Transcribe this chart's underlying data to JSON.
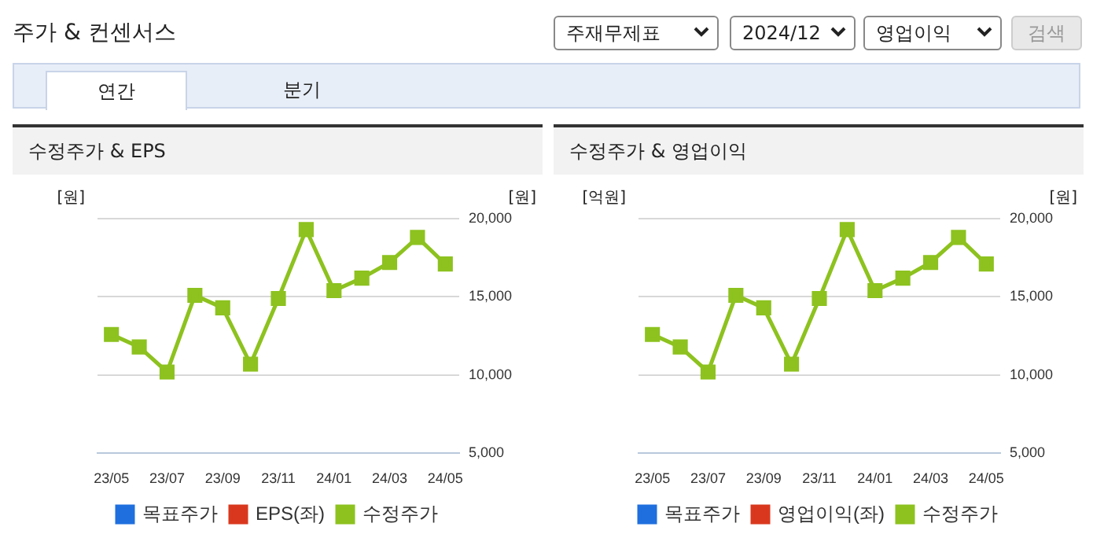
{
  "chart_data": [
    {
      "type": "other",
      "title": "주가 & 컨센서스",
      "annotations": [
        "주재무제표",
        "2024/12",
        "영업이익",
        "검색",
        "연간",
        "분기"
      ]
    },
    {
      "type": "line",
      "title": "수정주가 & EPS",
      "ylabel": "[원]",
      "y2label": "[원]",
      "categories": [
        "23/05",
        null,
        "23/07",
        null,
        "23/09",
        null,
        "23/11",
        null,
        "24/01",
        null,
        "24/03",
        null,
        "24/05"
      ],
      "series": [
        {
          "name": "목표주가",
          "color": "#1f6fde",
          "values": [
            null,
            null,
            null,
            null,
            null,
            null,
            null,
            null,
            null,
            null,
            null,
            null,
            null
          ]
        },
        {
          "name": "EPS(좌)",
          "color": "#d9381e",
          "values": [
            null,
            null,
            null,
            null,
            null,
            null,
            null,
            null,
            null,
            null,
            null,
            null,
            null
          ]
        },
        {
          "name": "수정주가",
          "color": "#8dc21f",
          "axis": "y2",
          "values": [
            12600,
            11800,
            10200,
            15100,
            14300,
            10700,
            14900,
            19300,
            15400,
            16200,
            17200,
            18800,
            17100
          ]
        }
      ],
      "y2lim": [
        5000,
        20000
      ],
      "y2ticks": [
        {
          "value": 5000,
          "label": "5,000"
        },
        {
          "value": 10000,
          "label": "10,000"
        },
        {
          "value": 15000,
          "label": "15,000"
        },
        {
          "value": 20000,
          "label": "20,000"
        }
      ],
      "grid": "y",
      "legend": "bottom",
      "marker": "square"
    },
    {
      "type": "line",
      "title": "수정주가 & 영업이익",
      "ylabel": "[억원]",
      "y2label": "[원]",
      "categories": [
        "23/05",
        null,
        "23/07",
        null,
        "23/09",
        null,
        "23/11",
        null,
        "24/01",
        null,
        "24/03",
        null,
        "24/05"
      ],
      "series": [
        {
          "name": "목표주가",
          "color": "#1f6fde",
          "values": [
            null,
            null,
            null,
            null,
            null,
            null,
            null,
            null,
            null,
            null,
            null,
            null,
            null
          ]
        },
        {
          "name": "영업이익(좌)",
          "color": "#d9381e",
          "values": [
            null,
            null,
            null,
            null,
            null,
            null,
            null,
            null,
            null,
            null,
            null,
            null,
            null
          ]
        },
        {
          "name": "수정주가",
          "color": "#8dc21f",
          "axis": "y2",
          "values": [
            12600,
            11800,
            10200,
            15100,
            14300,
            10700,
            14900,
            19300,
            15400,
            16200,
            17200,
            18800,
            17100
          ]
        }
      ],
      "y2lim": [
        5000,
        20000
      ],
      "y2ticks": [
        {
          "value": 5000,
          "label": "5,000"
        },
        {
          "value": 10000,
          "label": "10,000"
        },
        {
          "value": 15000,
          "label": "15,000"
        },
        {
          "value": 20000,
          "label": "20,000"
        }
      ],
      "grid": "y",
      "legend": "bottom",
      "marker": "square"
    }
  ]
}
